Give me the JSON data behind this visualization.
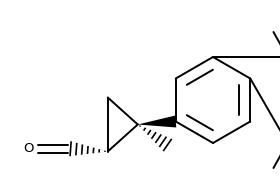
{
  "bg_color": "#ffffff",
  "line_color": "#000000",
  "lw": 1.4,
  "figsize": [
    2.8,
    1.78
  ],
  "dpi": 100,
  "xlim": [
    0,
    280
  ],
  "ylim": [
    0,
    178
  ]
}
